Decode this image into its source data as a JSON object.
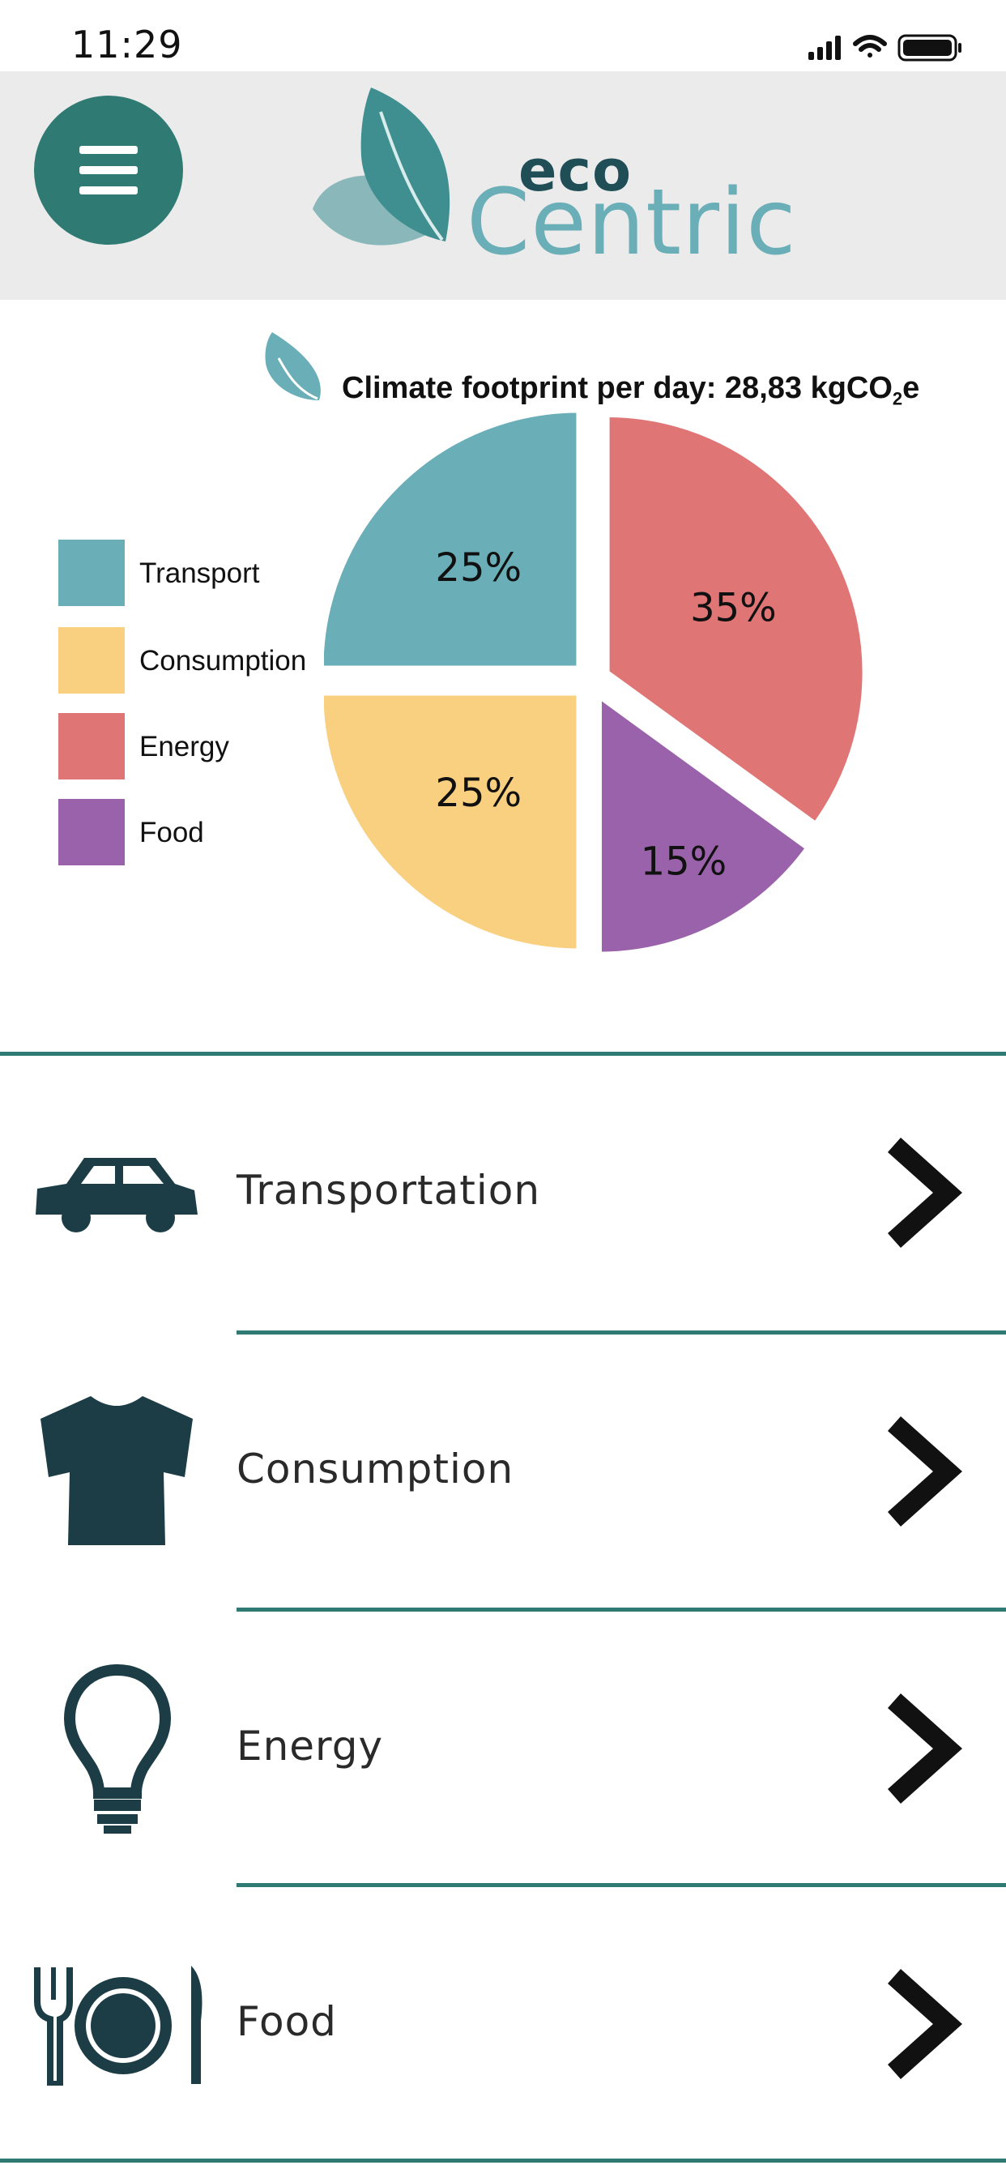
{
  "status": {
    "time": "11:29"
  },
  "header": {
    "logo_top": "eco",
    "logo_bottom": "Centric"
  },
  "chart": {
    "title_prefix": "Climate footprint per day: 28,83 kgCO",
    "title_sub": "2",
    "title_suffix": "e"
  },
  "chart_data": {
    "type": "pie",
    "title": "Climate footprint per day: 28,83 kgCO2e",
    "legend_position": "left",
    "categories": [
      "Transport",
      "Consumption",
      "Energy",
      "Food"
    ],
    "values": [
      25,
      25,
      35,
      15
    ],
    "labels": [
      "25%",
      "25%",
      "35%",
      "15%"
    ],
    "colors": [
      "#6aaeb7",
      "#f9d07f",
      "#e07575",
      "#9a62ab"
    ]
  },
  "categories": [
    {
      "label": "Transportation",
      "icon": "car-icon"
    },
    {
      "label": "Consumption",
      "icon": "tshirt-icon"
    },
    {
      "label": "Energy",
      "icon": "lightbulb-icon"
    },
    {
      "label": "Food",
      "icon": "plate-cutlery-icon"
    }
  ],
  "colors": {
    "accent": "#2f7a73",
    "icon_dark": "#1c3d45",
    "header_bg": "#ebebeb"
  }
}
